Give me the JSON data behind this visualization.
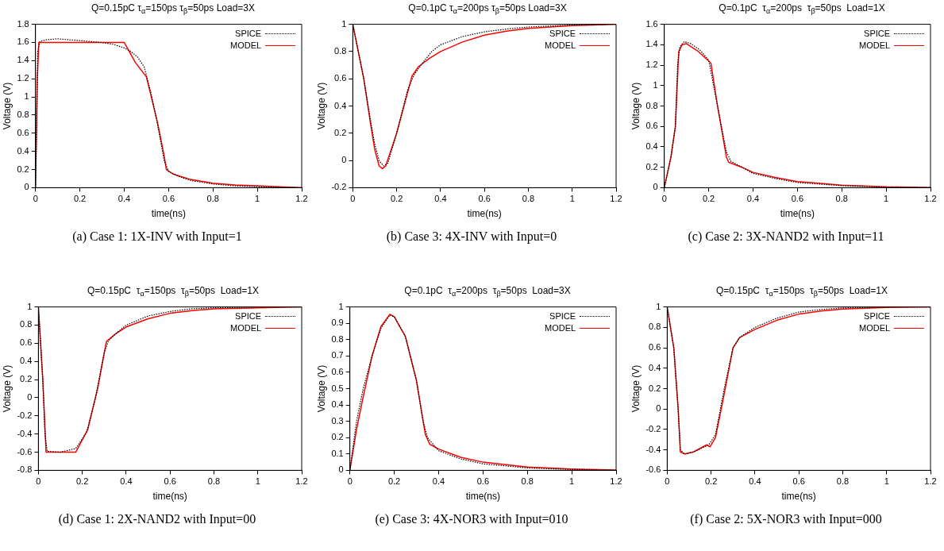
{
  "chart_data": [
    {
      "type": "line",
      "title": "Q=0.15pC τ$_{α}$=150ps τ$_{β}$=50ps Load=3X",
      "xlabel": "time(ns)",
      "ylabel": "Voltage (V)",
      "annotations": [
        "(a) Case 1: 1X-INV with Input=1"
      ],
      "xlim": [
        0,
        1.2
      ],
      "xticks": [
        0,
        0.2,
        0.4,
        0.6,
        0.8,
        1,
        1.2
      ],
      "ylim": [
        0,
        1.8
      ],
      "yticks": [
        0,
        0.2,
        0.4,
        0.6,
        0.8,
        1,
        1.2,
        1.4,
        1.6,
        1.8
      ],
      "legend": "top right",
      "series": [
        {
          "name": "SPICE",
          "color": "#000000",
          "line_style": "dotted",
          "x": [
            0,
            0.005,
            0.01,
            0.02,
            0.05,
            0.1,
            0.2,
            0.3,
            0.35,
            0.4,
            0.43,
            0.46,
            0.49,
            0.52,
            0.55,
            0.58,
            0.6,
            0.65,
            0.7,
            0.8,
            0.9,
            1.0,
            1.2
          ],
          "values": [
            0,
            0.6,
            1.5,
            1.61,
            1.63,
            1.64,
            1.62,
            1.6,
            1.58,
            1.54,
            1.5,
            1.44,
            1.33,
            1.05,
            0.7,
            0.3,
            0.18,
            0.12,
            0.08,
            0.04,
            0.02,
            0.01,
            0
          ]
        },
        {
          "name": "MODEL",
          "color": "#ff0000",
          "line_style": "solid",
          "x": [
            0,
            0.008,
            0.01,
            0.015,
            0.4,
            0.45,
            0.5,
            0.55,
            0.58,
            0.59,
            0.62,
            0.7,
            0.8,
            0.9,
            1.0,
            1.2
          ],
          "values": [
            0,
            1.2,
            1.3,
            1.6,
            1.6,
            1.38,
            1.22,
            0.72,
            0.35,
            0.2,
            0.15,
            0.09,
            0.05,
            0.03,
            0.02,
            0
          ]
        }
      ]
    },
    {
      "type": "line",
      "title": "Q=0.1pC τ$_{α}$=200ps τ$_{β}$=50ps Load=3X",
      "xlabel": "time(ns)",
      "ylabel": "Voltage (V)",
      "annotations": [
        "(b) Case 3: 4X-INV with Input=0"
      ],
      "xlim": [
        0,
        1.2
      ],
      "xticks": [
        0,
        0.2,
        0.4,
        0.6,
        0.8,
        1,
        1.2
      ],
      "ylim": [
        -0.2,
        1
      ],
      "yticks": [
        -0.2,
        0,
        0.2,
        0.4,
        0.6,
        0.8,
        1
      ],
      "legend": "top right",
      "series": [
        {
          "name": "SPICE",
          "color": "#000000",
          "line_style": "dotted",
          "x": [
            0,
            0.05,
            0.08,
            0.1,
            0.12,
            0.14,
            0.16,
            0.2,
            0.25,
            0.28,
            0.32,
            0.36,
            0.4,
            0.5,
            0.6,
            0.7,
            0.8,
            1.0,
            1.2
          ],
          "values": [
            1,
            0.6,
            0.3,
            0.12,
            0,
            -0.04,
            -0.02,
            0.2,
            0.52,
            0.63,
            0.72,
            0.8,
            0.85,
            0.91,
            0.945,
            0.965,
            0.98,
            0.995,
            1
          ]
        },
        {
          "name": "MODEL",
          "color": "#ff0000",
          "line_style": "solid",
          "x": [
            0,
            0.05,
            0.08,
            0.1,
            0.12,
            0.135,
            0.15,
            0.2,
            0.25,
            0.27,
            0.3,
            0.35,
            0.4,
            0.5,
            0.6,
            0.7,
            0.8,
            1.0,
            1.2
          ],
          "values": [
            1,
            0.6,
            0.28,
            0.08,
            -0.04,
            -0.06,
            -0.04,
            0.2,
            0.5,
            0.62,
            0.69,
            0.75,
            0.8,
            0.87,
            0.92,
            0.95,
            0.97,
            0.99,
            1
          ]
        }
      ]
    },
    {
      "type": "line",
      "title": "Q=0.1pC  τ$_{α}$=200ps  τ$_{β}$=50ps  Load=1X",
      "xlabel": "time(ns)",
      "ylabel": "Voltage (V)",
      "annotations": [
        "(c) Case 2: 3X-NAND2 with Input=11"
      ],
      "xlim": [
        0,
        1.2
      ],
      "xticks": [
        0,
        0.2,
        0.4,
        0.6,
        0.8,
        1,
        1.2
      ],
      "ylim": [
        0,
        1.6
      ],
      "yticks": [
        0,
        0.2,
        0.4,
        0.6,
        0.8,
        1,
        1.2,
        1.4,
        1.6
      ],
      "legend": "top right",
      "series": [
        {
          "name": "SPICE",
          "color": "#000000",
          "line_style": "dotted",
          "x": [
            0,
            0.03,
            0.05,
            0.06,
            0.07,
            0.09,
            0.12,
            0.16,
            0.2,
            0.24,
            0.28,
            0.3,
            0.35,
            0.4,
            0.5,
            0.6,
            0.8,
            1.0,
            1.2
          ],
          "values": [
            0,
            0.3,
            0.6,
            1.2,
            1.38,
            1.43,
            1.41,
            1.35,
            1.25,
            0.8,
            0.35,
            0.26,
            0.2,
            0.14,
            0.09,
            0.05,
            0.02,
            0.005,
            0
          ]
        },
        {
          "name": "MODEL",
          "color": "#ff0000",
          "line_style": "solid",
          "x": [
            0,
            0.03,
            0.05,
            0.065,
            0.08,
            0.1,
            0.15,
            0.21,
            0.24,
            0.28,
            0.29,
            0.35,
            0.4,
            0.5,
            0.6,
            0.8,
            1.0,
            1.2
          ],
          "values": [
            0,
            0.3,
            0.6,
            1.33,
            1.4,
            1.41,
            1.34,
            1.22,
            0.8,
            0.3,
            0.25,
            0.2,
            0.15,
            0.1,
            0.06,
            0.025,
            0.008,
            0.002
          ]
        }
      ]
    },
    {
      "type": "line",
      "title": "Q=0.15pC  τ$_{α}$=150ps  τ$_{β}$=50ps  Load=1X",
      "xlabel": "time(ns)",
      "ylabel": "Voltage (V)",
      "annotations": [
        "(d) Case 1: 2X-NAND2 with Input=00"
      ],
      "xlim": [
        0,
        1.2
      ],
      "xticks": [
        0,
        0.2,
        0.4,
        0.6,
        0.8,
        1,
        1.2
      ],
      "ylim": [
        -0.8,
        1
      ],
      "yticks": [
        -0.8,
        -0.6,
        -0.4,
        -0.2,
        0,
        0.2,
        0.4,
        0.6,
        0.8,
        1
      ],
      "legend": "top right",
      "series": [
        {
          "name": "SPICE",
          "color": "#000000",
          "line_style": "dotted",
          "x": [
            0,
            0.02,
            0.03,
            0.04,
            0.1,
            0.17,
            0.22,
            0.26,
            0.3,
            0.32,
            0.36,
            0.4,
            0.5,
            0.6,
            0.7,
            0.8,
            1.0,
            1.2
          ],
          "values": [
            1,
            0.2,
            -0.4,
            -0.59,
            -0.6,
            -0.56,
            -0.38,
            0,
            0.5,
            0.63,
            0.72,
            0.8,
            0.9,
            0.95,
            0.98,
            0.99,
            1,
            1
          ]
        },
        {
          "name": "MODEL",
          "color": "#ff0000",
          "line_style": "solid",
          "x": [
            0,
            0.02,
            0.035,
            0.17,
            0.225,
            0.27,
            0.31,
            0.35,
            0.4,
            0.5,
            0.6,
            0.7,
            0.8,
            1.0,
            1.2
          ],
          "values": [
            1,
            0.2,
            -0.6,
            -0.6,
            -0.35,
            0.1,
            0.62,
            0.7,
            0.78,
            0.87,
            0.93,
            0.96,
            0.98,
            0.99,
            1
          ]
        }
      ]
    },
    {
      "type": "line",
      "title": "Q=0.1pC  τ$_{α}$=200ps  τ$_{β}$=50ps  Load=3X",
      "xlabel": "time(ns)",
      "ylabel": "Voltage (V)",
      "annotations": [
        "(e) Case 3: 4X-NOR3 with Input=010"
      ],
      "xlim": [
        0,
        1.2
      ],
      "xticks": [
        0,
        0.2,
        0.4,
        0.6,
        0.8,
        1,
        1.2
      ],
      "ylim": [
        0,
        1
      ],
      "yticks": [
        0,
        0.1,
        0.2,
        0.3,
        0.4,
        0.5,
        0.6,
        0.7,
        0.8,
        0.9,
        1
      ],
      "legend": "top right",
      "series": [
        {
          "name": "SPICE",
          "color": "#000000",
          "line_style": "dotted",
          "x": [
            0,
            0.03,
            0.06,
            0.1,
            0.14,
            0.18,
            0.2,
            0.25,
            0.3,
            0.33,
            0.35,
            0.4,
            0.5,
            0.6,
            0.8,
            1.0,
            1.2
          ],
          "values": [
            0,
            0.3,
            0.5,
            0.7,
            0.87,
            0.95,
            0.94,
            0.82,
            0.55,
            0.3,
            0.2,
            0.12,
            0.07,
            0.04,
            0.015,
            0.005,
            0
          ]
        },
        {
          "name": "MODEL",
          "color": "#ff0000",
          "line_style": "solid",
          "x": [
            0,
            0.03,
            0.06,
            0.1,
            0.14,
            0.18,
            0.2,
            0.25,
            0.3,
            0.34,
            0.36,
            0.4,
            0.5,
            0.6,
            0.8,
            1.0,
            1.2
          ],
          "values": [
            0,
            0.25,
            0.45,
            0.7,
            0.88,
            0.955,
            0.94,
            0.82,
            0.55,
            0.22,
            0.16,
            0.13,
            0.08,
            0.05,
            0.02,
            0.008,
            0.002
          ]
        }
      ]
    },
    {
      "type": "line",
      "title": "Q=0.15pC  τ$_{α}$=150ps  τ$_{β}$=50ps  Load=1X",
      "xlabel": "time(ns)",
      "ylabel": "Voltage (V)",
      "annotations": [
        "(f) Case 2: 5X-NOR3 with Input=000"
      ],
      "xlim": [
        0,
        1.2
      ],
      "xticks": [
        0,
        0.2,
        0.4,
        0.6,
        0.8,
        1,
        1.2
      ],
      "ylim": [
        -0.6,
        1
      ],
      "yticks": [
        -0.6,
        -0.4,
        -0.2,
        0,
        0.2,
        0.4,
        0.6,
        0.8,
        1
      ],
      "legend": "top right",
      "series": [
        {
          "name": "SPICE",
          "color": "#000000",
          "line_style": "dotted",
          "x": [
            0,
            0.03,
            0.05,
            0.06,
            0.08,
            0.12,
            0.16,
            0.19,
            0.22,
            0.26,
            0.3,
            0.33,
            0.4,
            0.5,
            0.6,
            0.7,
            0.8,
            1.0,
            1.2
          ],
          "values": [
            1,
            0.6,
            0,
            -0.4,
            -0.44,
            -0.42,
            -0.38,
            -0.35,
            -0.25,
            0.2,
            0.6,
            0.7,
            0.8,
            0.89,
            0.95,
            0.975,
            0.99,
            1,
            1
          ]
        },
        {
          "name": "MODEL",
          "color": "#ff0000",
          "line_style": "solid",
          "x": [
            0,
            0.03,
            0.05,
            0.06,
            0.08,
            0.12,
            0.18,
            0.195,
            0.22,
            0.26,
            0.3,
            0.33,
            0.4,
            0.5,
            0.6,
            0.7,
            0.8,
            1.0,
            1.2
          ],
          "values": [
            1,
            0.6,
            0,
            -0.42,
            -0.44,
            -0.42,
            -0.35,
            -0.37,
            -0.28,
            0.15,
            0.6,
            0.7,
            0.78,
            0.87,
            0.93,
            0.96,
            0.98,
            0.995,
            1
          ]
        }
      ]
    }
  ]
}
